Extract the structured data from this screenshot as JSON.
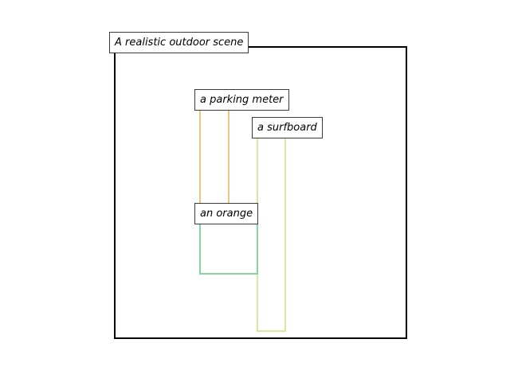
{
  "scene": {
    "caption": "A realistic outdoor scene",
    "frame_color": "#000000"
  },
  "objects": [
    {
      "key": "parking_meter",
      "label": "a parking meter",
      "color": "#e8c87e"
    },
    {
      "key": "surfboard",
      "label": "a surfboard",
      "color": "#d4eaa0"
    },
    {
      "key": "orange",
      "label": "an orange",
      "color": "#86d4a0"
    }
  ]
}
